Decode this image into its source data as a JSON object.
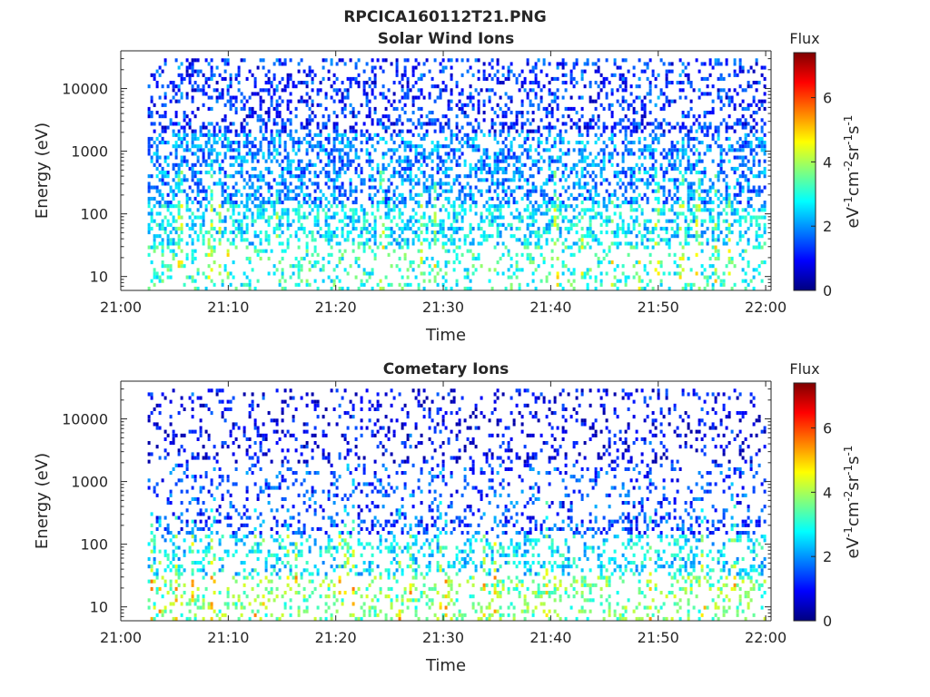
{
  "figure": {
    "file_title": "RPCICA160112T21.PNG"
  },
  "colormap": {
    "name": "jet",
    "stops": [
      "#00007f",
      "#0000ff",
      "#007fff",
      "#00ffff",
      "#7fff7f",
      "#ffff00",
      "#ff7f00",
      "#ff0000",
      "#7f0000"
    ]
  },
  "chart_data": [
    {
      "type": "heatmap",
      "title": "Solar Wind Ions",
      "xlabel": "Time",
      "ylabel": "Energy (eV)",
      "x_ticks": [
        "21:00",
        "21:10",
        "21:20",
        "21:30",
        "21:40",
        "21:50",
        "22:00"
      ],
      "x_range_minutes": [
        0,
        60.5
      ],
      "y_scale": "log",
      "y_ticks": [
        "10",
        "100",
        "1000",
        "10000"
      ],
      "y_tick_values": [
        10,
        100,
        1000,
        10000
      ],
      "y_range": [
        6,
        40000
      ],
      "data_start_minutes": 2.5,
      "colorbar": {
        "title": "Flux",
        "label": "eV-1cm-2sr-1s-1",
        "ticks": [
          "0",
          "2",
          "4",
          "6"
        ],
        "tick_values": [
          0,
          2,
          4,
          6
        ],
        "range": [
          0,
          7.4
        ]
      },
      "flux_profile": {
        "note_bands": "typical flux level by energy band (log flux)",
        "bands": [
          {
            "energy_min": 6,
            "energy_max": 30,
            "flux": 3.1
          },
          {
            "energy_min": 30,
            "energy_max": 150,
            "flux": 2.6
          },
          {
            "energy_min": 150,
            "energy_max": 2000,
            "flux": 1.9
          },
          {
            "energy_min": 2000,
            "energy_max": 30000,
            "flux": 1.2
          }
        ]
      }
    },
    {
      "type": "heatmap",
      "title": "Cometary Ions",
      "xlabel": "Time",
      "ylabel": "Energy (eV)",
      "x_ticks": [
        "21:00",
        "21:10",
        "21:20",
        "21:30",
        "21:40",
        "21:50",
        "22:00"
      ],
      "x_range_minutes": [
        0,
        60.5
      ],
      "y_scale": "log",
      "y_ticks": [
        "10",
        "100",
        "1000",
        "10000"
      ],
      "y_tick_values": [
        10,
        100,
        1000,
        10000
      ],
      "y_range": [
        6,
        40000
      ],
      "data_start_minutes": 2.5,
      "colorbar": {
        "title": "Flux",
        "label": "eV-1cm-2sr-1s-1",
        "ticks": [
          "0",
          "2",
          "4",
          "6"
        ],
        "tick_values": [
          0,
          2,
          4,
          6
        ],
        "range": [
          0,
          7.4
        ]
      },
      "flux_profile": {
        "bands": [
          {
            "energy_min": 6,
            "energy_max": 30,
            "flux": 3.6
          },
          {
            "energy_min": 30,
            "energy_max": 150,
            "flux": 2.6
          },
          {
            "energy_min": 150,
            "energy_max": 2000,
            "flux": 1.4
          },
          {
            "energy_min": 2000,
            "energy_max": 30000,
            "flux": 0.8
          }
        ]
      }
    }
  ]
}
